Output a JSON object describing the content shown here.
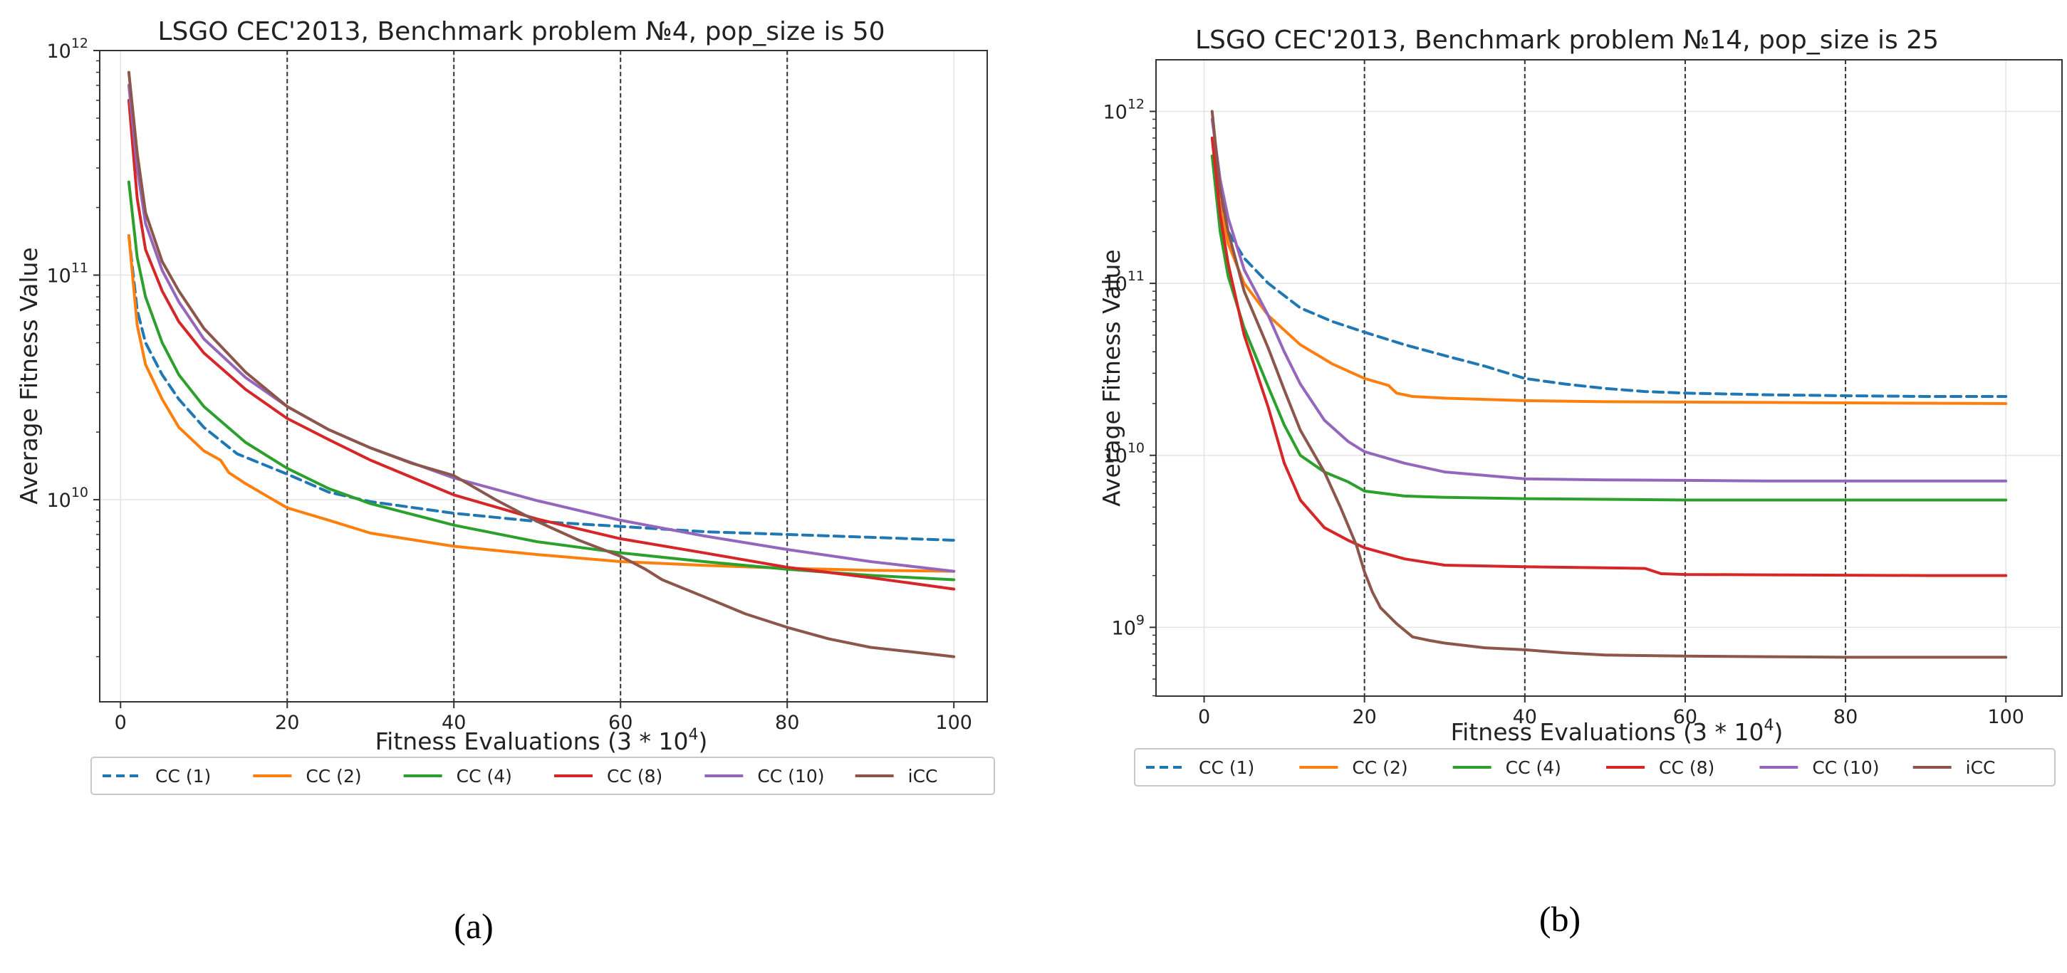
{
  "chart_data": [
    {
      "type": "line",
      "panel_label": "(a)",
      "title": "LSGO CEC'2013, Benchmark problem №4, pop_size is 50",
      "xlabel": "Fitness Evaluations (3 * 10^4)",
      "ylabel": "Average Fitness Value",
      "yscale": "log",
      "xlim": [
        -2.5,
        104
      ],
      "ylim_log10": [
        9.1,
        12
      ],
      "xticks": [
        {
          "v": 0,
          "label": "0"
        },
        {
          "v": 20,
          "label": "20"
        },
        {
          "v": 40,
          "label": "40"
        },
        {
          "v": 60,
          "label": "60"
        },
        {
          "v": 80,
          "label": "80"
        },
        {
          "v": 100,
          "label": "100"
        }
      ],
      "yticks": [
        {
          "e": 10,
          "base": "10",
          "exp": "10"
        },
        {
          "e": 11,
          "base": "10",
          "exp": "11"
        },
        {
          "e": 12,
          "base": "10",
          "exp": "12"
        }
      ],
      "grid": true,
      "vlines": [
        20,
        40,
        60,
        80
      ],
      "legend_position": "bottom",
      "series": [
        {
          "name": "CC (1)",
          "color": "#1f77b4",
          "dash": "dashed",
          "x": [
            1,
            2,
            3,
            5,
            7,
            10,
            14,
            20,
            25,
            30,
            40,
            50,
            60,
            70,
            80,
            90,
            100
          ],
          "y": [
            150000000000.0,
            70000000000.0,
            50000000000.0,
            36000000000.0,
            28000000000.0,
            21000000000.0,
            16000000000.0,
            13000000000.0,
            10800000000.0,
            9800000000.0,
            8700000000.0,
            8000000000.0,
            7600000000.0,
            7200000000.0,
            7000000000.0,
            6800000000.0,
            6600000000.0
          ]
        },
        {
          "name": "CC (2)",
          "color": "#ff7f0e",
          "dash": "solid",
          "x": [
            1,
            2,
            3,
            5,
            7,
            10,
            12,
            13,
            15,
            20,
            25,
            30,
            40,
            50,
            60,
            70,
            80,
            90,
            100
          ],
          "y": [
            150000000000.0,
            60000000000.0,
            40000000000.0,
            28000000000.0,
            21000000000.0,
            16500000000.0,
            15000000000.0,
            13200000000.0,
            11800000000.0,
            9200000000.0,
            8100000000.0,
            7100000000.0,
            6200000000.0,
            5700000000.0,
            5300000000.0,
            5100000000.0,
            4950000000.0,
            4850000000.0,
            4800000000.0
          ]
        },
        {
          "name": "CC (4)",
          "color": "#2ca02c",
          "dash": "solid",
          "x": [
            1,
            2,
            3,
            5,
            7,
            10,
            15,
            20,
            25,
            30,
            40,
            50,
            60,
            70,
            80,
            90,
            100
          ],
          "y": [
            260000000000.0,
            120000000000.0,
            80000000000.0,
            50000000000.0,
            36000000000.0,
            26000000000.0,
            18000000000.0,
            13800000000.0,
            11200000000.0,
            9600000000.0,
            7700000000.0,
            6500000000.0,
            5800000000.0,
            5300000000.0,
            4900000000.0,
            4600000000.0,
            4400000000.0
          ]
        },
        {
          "name": "CC (8)",
          "color": "#d62728",
          "dash": "solid",
          "x": [
            1,
            2,
            3,
            5,
            7,
            10,
            15,
            20,
            25,
            30,
            40,
            50,
            60,
            70,
            80,
            90,
            100
          ],
          "y": [
            600000000000.0,
            220000000000.0,
            130000000000.0,
            85000000000.0,
            62000000000.0,
            45000000000.0,
            31000000000.0,
            23000000000.0,
            18500000000.0,
            15000000000.0,
            10500000000.0,
            8200000000.0,
            6700000000.0,
            5800000000.0,
            5000000000.0,
            4500000000.0,
            4000000000.0
          ]
        },
        {
          "name": "CC (10)",
          "color": "#9467bd",
          "dash": "solid",
          "x": [
            1,
            2,
            3,
            5,
            7,
            10,
            15,
            20,
            25,
            30,
            40,
            50,
            60,
            70,
            80,
            90,
            100
          ],
          "y": [
            700000000000.0,
            300000000000.0,
            170000000000.0,
            105000000000.0,
            76000000000.0,
            52000000000.0,
            35000000000.0,
            26000000000.0,
            20500000000.0,
            17000000000.0,
            12500000000.0,
            9900000000.0,
            8100000000.0,
            6900000000.0,
            6000000000.0,
            5300000000.0,
            4800000000.0
          ]
        },
        {
          "name": "iCC",
          "color": "#8c564b",
          "dash": "solid",
          "x": [
            1,
            2,
            3,
            5,
            7,
            10,
            15,
            20,
            25,
            30,
            35,
            40,
            45,
            50,
            55,
            60,
            63,
            65,
            70,
            75,
            80,
            85,
            90,
            95,
            100
          ],
          "y": [
            800000000000.0,
            350000000000.0,
            190000000000.0,
            115000000000.0,
            85000000000.0,
            58000000000.0,
            37000000000.0,
            26000000000.0,
            20500000000.0,
            17000000000.0,
            14500000000.0,
            12800000000.0,
            10000000000.0,
            8000000000.0,
            6600000000.0,
            5600000000.0,
            4900000000.0,
            4400000000.0,
            3700000000.0,
            3100000000.0,
            2700000000.0,
            2400000000.0,
            2200000000.0,
            2100000000.0,
            2000000000.0
          ]
        }
      ]
    },
    {
      "type": "line",
      "panel_label": "(b)",
      "title": "LSGO CEC'2013, Benchmark problem №14, pop_size is 25",
      "xlabel": "Fitness Evaluations (3 * 10^4)",
      "ylabel": "Average Fitness Value",
      "yscale": "log",
      "xlim": [
        -6,
        107
      ],
      "ylim_log10": [
        8.6,
        12.3
      ],
      "xticks": [
        {
          "v": 0,
          "label": "0"
        },
        {
          "v": 20,
          "label": "20"
        },
        {
          "v": 40,
          "label": "40"
        },
        {
          "v": 60,
          "label": "60"
        },
        {
          "v": 80,
          "label": "80"
        },
        {
          "v": 100,
          "label": "100"
        }
      ],
      "yticks": [
        {
          "e": 9,
          "base": "10",
          "exp": "9"
        },
        {
          "e": 10,
          "base": "10",
          "exp": "10"
        },
        {
          "e": 11,
          "base": "10",
          "exp": "11"
        },
        {
          "e": 12,
          "base": "10",
          "exp": "12"
        }
      ],
      "grid": true,
      "vlines": [
        20,
        40,
        60,
        80
      ],
      "legend_position": "bottom",
      "series": [
        {
          "name": "CC (1)",
          "color": "#1f77b4",
          "dash": "dashed",
          "x": [
            1,
            2,
            3,
            5,
            8,
            12,
            16,
            20,
            25,
            30,
            35,
            40,
            45,
            50,
            55,
            60,
            70,
            80,
            90,
            100
          ],
          "y": [
            550000000000.0,
            300000000000.0,
            200000000000.0,
            140000000000.0,
            100000000000.0,
            72000000000.0,
            60000000000.0,
            52000000000.0,
            44000000000.0,
            38000000000.0,
            33000000000.0,
            28000000000.0,
            26000000000.0,
            24500000000.0,
            23500000000.0,
            23000000000.0,
            22500000000.0,
            22200000000.0,
            22000000000.0,
            22000000000.0
          ]
        },
        {
          "name": "CC (2)",
          "color": "#ff7f0e",
          "dash": "solid",
          "x": [
            1,
            2,
            3,
            5,
            8,
            12,
            16,
            20,
            23,
            24,
            26,
            30,
            40,
            50,
            60,
            70,
            80,
            90,
            100
          ],
          "y": [
            550000000000.0,
            280000000000.0,
            170000000000.0,
            100000000000.0,
            65000000000.0,
            44000000000.0,
            34000000000.0,
            28000000000.0,
            25500000000.0,
            23000000000.0,
            22000000000.0,
            21500000000.0,
            20800000000.0,
            20500000000.0,
            20400000000.0,
            20300000000.0,
            20200000000.0,
            20100000000.0,
            20000000000.0
          ]
        },
        {
          "name": "CC (4)",
          "color": "#2ca02c",
          "dash": "solid",
          "x": [
            1,
            2,
            3,
            5,
            8,
            10,
            12,
            15,
            18,
            20,
            25,
            30,
            40,
            50,
            60,
            70,
            80,
            90,
            100
          ],
          "y": [
            550000000000.0,
            200000000000.0,
            110000000000.0,
            55000000000.0,
            25000000000.0,
            15000000000.0,
            10000000000.0,
            8000000000.0,
            7000000000.0,
            6200000000.0,
            5800000000.0,
            5700000000.0,
            5600000000.0,
            5550000000.0,
            5500000000.0,
            5500000000.0,
            5500000000.0,
            5500000000.0,
            5500000000.0
          ]
        },
        {
          "name": "CC (8)",
          "color": "#d62728",
          "dash": "solid",
          "x": [
            1,
            2,
            3,
            5,
            8,
            10,
            12,
            15,
            18,
            20,
            25,
            30,
            40,
            50,
            55,
            57,
            60,
            70,
            80,
            90,
            100
          ],
          "y": [
            700000000000.0,
            250000000000.0,
            130000000000.0,
            50000000000.0,
            19000000000.0,
            9000000000.0,
            5500000000.0,
            3800000000.0,
            3200000000.0,
            2900000000.0,
            2500000000.0,
            2300000000.0,
            2250000000.0,
            2220000000.0,
            2200000000.0,
            2050000000.0,
            2030000000.0,
            2020000000.0,
            2010000000.0,
            2000000000.0,
            2000000000.0
          ]
        },
        {
          "name": "CC (10)",
          "color": "#9467bd",
          "dash": "solid",
          "x": [
            1,
            2,
            3,
            5,
            8,
            10,
            12,
            15,
            18,
            20,
            25,
            30,
            40,
            50,
            60,
            70,
            80,
            90,
            100
          ],
          "y": [
            900000000000.0,
            400000000000.0,
            240000000000.0,
            120000000000.0,
            65000000000.0,
            40000000000.0,
            26000000000.0,
            16000000000.0,
            12000000000.0,
            10500000000.0,
            9000000000.0,
            8000000000.0,
            7300000000.0,
            7200000000.0,
            7150000000.0,
            7100000000.0,
            7100000000.0,
            7100000000.0,
            7100000000.0
          ]
        },
        {
          "name": "iCC",
          "color": "#8c564b",
          "dash": "solid",
          "x": [
            1,
            2,
            3,
            5,
            8,
            10,
            12,
            15,
            17,
            19,
            20,
            21,
            22,
            24,
            26,
            28,
            30,
            35,
            40,
            45,
            50,
            60,
            70,
            80,
            90,
            100
          ],
          "y": [
            1000000000000.0,
            350000000000.0,
            200000000000.0,
            90000000000.0,
            42000000000.0,
            24000000000.0,
            14000000000.0,
            8000000000.0,
            5000000000.0,
            3000000000.0,
            2100000000.0,
            1600000000.0,
            1300000000.0,
            1050000000.0,
            880000000.0,
            840000000.0,
            810000000.0,
            760000000.0,
            740000000.0,
            710000000.0,
            690000000.0,
            680000000.0,
            675000000.0,
            670000000.0,
            670000000.0,
            670000000.0
          ]
        }
      ]
    }
  ]
}
